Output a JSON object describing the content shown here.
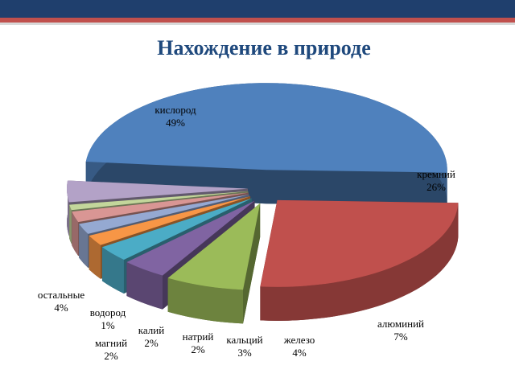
{
  "chart_data": {
    "type": "pie",
    "title": "Нахождение в природе",
    "categories": [
      "кислород",
      "кремний",
      "алюминий",
      "железо",
      "кальций",
      "натрий",
      "калий",
      "магний",
      "водород",
      "остальные"
    ],
    "values": [
      49,
      26,
      7,
      4,
      3,
      2,
      2,
      2,
      1,
      4
    ],
    "value_labels": [
      "49%",
      "26%",
      "7%",
      "4%",
      "3%",
      "2%",
      "2%",
      "2%",
      "1%",
      "4%"
    ],
    "colors": [
      "#4f81bd",
      "#c0504d",
      "#9bbb59",
      "#8064a2",
      "#4bacc6",
      "#f79646",
      "#95a9d2",
      "#d99694",
      "#c3d69b",
      "#b3a2c7"
    ]
  }
}
